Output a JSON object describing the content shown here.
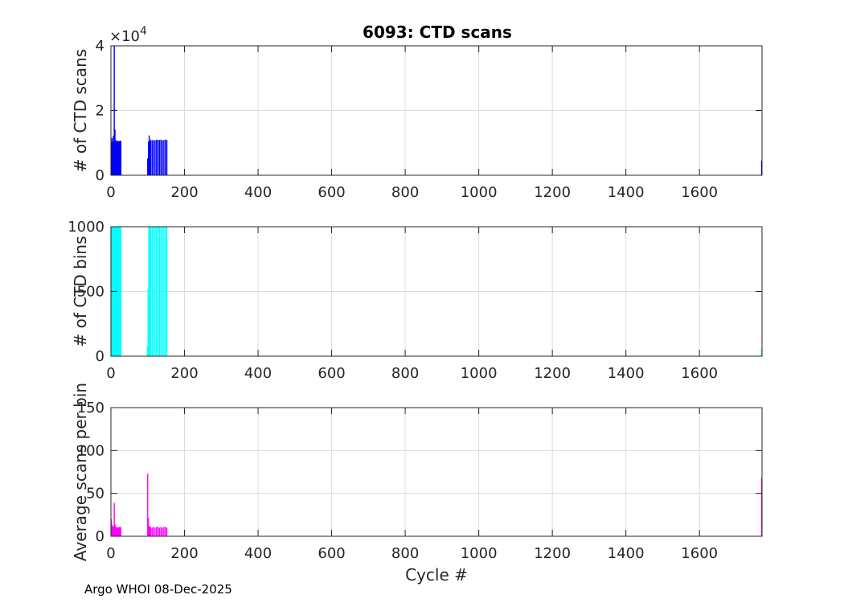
{
  "title": "6093: CTD scans",
  "footer": "Argo WHOI 08-Dec-2025",
  "chart_data": [
    {
      "type": "bar",
      "ylabel": "# of CTD scans",
      "xlabel": "",
      "exponent": "×10^4",
      "color": "#0000ff",
      "xlim": [
        0,
        1770
      ],
      "ylim": [
        0,
        40000
      ],
      "xticks": [
        0,
        200,
        400,
        600,
        800,
        1000,
        1200,
        1400,
        1600
      ],
      "yticks": [
        0,
        2,
        4
      ],
      "grid": true,
      "points": [
        [
          1,
          10200
        ],
        [
          3,
          11500
        ],
        [
          5,
          10300
        ],
        [
          7,
          12200
        ],
        [
          9,
          40000
        ],
        [
          11,
          14200
        ],
        [
          13,
          10800
        ],
        [
          15,
          10500
        ],
        [
          17,
          10700
        ],
        [
          19,
          10600
        ],
        [
          21,
          10500
        ],
        [
          23,
          10600
        ],
        [
          25,
          10700
        ],
        [
          27,
          10600
        ],
        [
          100,
          5200
        ],
        [
          102,
          10400
        ],
        [
          104,
          12300
        ],
        [
          106,
          10500
        ],
        [
          108,
          11000
        ],
        [
          112,
          10800
        ],
        [
          116,
          10900
        ],
        [
          120,
          10800
        ],
        [
          124,
          11000
        ],
        [
          128,
          10900
        ],
        [
          132,
          10900
        ],
        [
          136,
          11000
        ],
        [
          140,
          10800
        ],
        [
          144,
          10900
        ],
        [
          148,
          11000
        ],
        [
          152,
          10900
        ],
        [
          1769,
          4500
        ]
      ]
    },
    {
      "type": "bar",
      "ylabel": "# of CTD bins",
      "xlabel": "",
      "color": "#00ffff",
      "xlim": [
        0,
        1770
      ],
      "ylim": [
        0,
        1000
      ],
      "xticks": [
        0,
        200,
        400,
        600,
        800,
        1000,
        1200,
        1400,
        1600
      ],
      "yticks": [
        0,
        500,
        1000
      ],
      "grid": true,
      "points": [
        [
          1,
          1000
        ],
        [
          3,
          1000
        ],
        [
          5,
          1000
        ],
        [
          7,
          1000
        ],
        [
          9,
          1000
        ],
        [
          11,
          1000
        ],
        [
          13,
          1000
        ],
        [
          15,
          1000
        ],
        [
          17,
          1000
        ],
        [
          19,
          1000
        ],
        [
          21,
          1000
        ],
        [
          23,
          1000
        ],
        [
          25,
          1000
        ],
        [
          27,
          1000
        ],
        [
          99,
          70
        ],
        [
          101,
          520
        ],
        [
          103,
          1000
        ],
        [
          105,
          1000
        ],
        [
          108,
          1000
        ],
        [
          112,
          1000
        ],
        [
          116,
          1000
        ],
        [
          120,
          1000
        ],
        [
          124,
          1000
        ],
        [
          128,
          1000
        ],
        [
          132,
          1000
        ],
        [
          136,
          1000
        ],
        [
          140,
          1000
        ],
        [
          144,
          1000
        ],
        [
          148,
          1000
        ],
        [
          152,
          1000
        ],
        [
          1769,
          60
        ]
      ]
    },
    {
      "type": "bar",
      "ylabel": "Average scans per bin",
      "xlabel": "Cycle #",
      "color": "#ff00ff",
      "xlim": [
        0,
        1770
      ],
      "ylim": [
        0,
        150
      ],
      "xticks": [
        0,
        200,
        400,
        600,
        800,
        1000,
        1200,
        1400,
        1600
      ],
      "yticks": [
        0,
        50,
        100,
        150
      ],
      "grid": true,
      "points": [
        [
          1,
          20
        ],
        [
          3,
          13
        ],
        [
          5,
          11
        ],
        [
          7,
          12
        ],
        [
          9,
          39
        ],
        [
          11,
          14
        ],
        [
          13,
          11
        ],
        [
          15,
          10
        ],
        [
          17,
          11
        ],
        [
          19,
          10
        ],
        [
          21,
          10
        ],
        [
          23,
          11
        ],
        [
          25,
          10
        ],
        [
          27,
          11
        ],
        [
          100,
          73
        ],
        [
          102,
          21
        ],
        [
          104,
          12
        ],
        [
          106,
          11
        ],
        [
          108,
          11
        ],
        [
          112,
          10
        ],
        [
          116,
          11
        ],
        [
          120,
          10
        ],
        [
          124,
          11
        ],
        [
          128,
          11
        ],
        [
          132,
          10
        ],
        [
          136,
          11
        ],
        [
          140,
          10
        ],
        [
          144,
          11
        ],
        [
          148,
          11
        ],
        [
          152,
          10
        ],
        [
          1769,
          68
        ]
      ]
    }
  ]
}
